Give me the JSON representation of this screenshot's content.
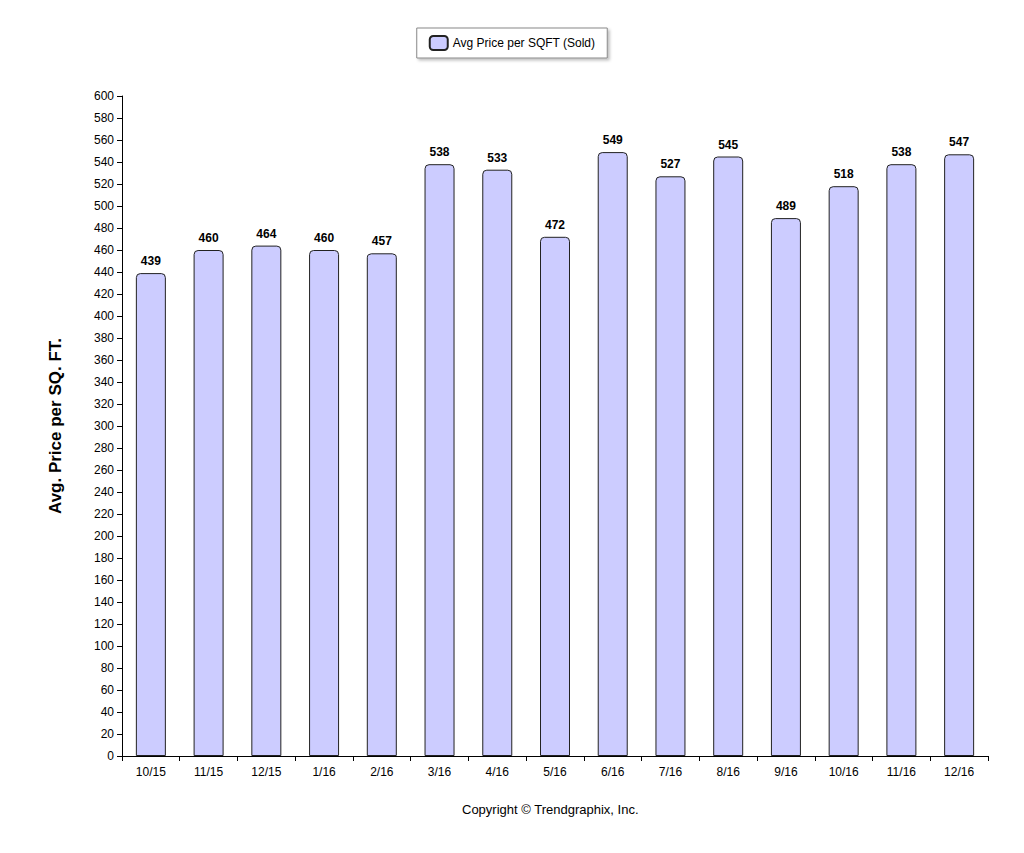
{
  "chart_data": {
    "type": "bar",
    "y_label": "Avg. Price per SQ. FT.",
    "annotations": [
      "Copyright © Trendgraphix, Inc."
    ],
    "categories": [
      "10/15",
      "11/15",
      "12/15",
      "1/16",
      "2/16",
      "3/16",
      "4/16",
      "5/16",
      "6/16",
      "7/16",
      "8/16",
      "9/16",
      "10/16",
      "11/16",
      "12/16"
    ],
    "series": [
      {
        "name": "Avg Price per SQFT (Sold)",
        "color": "#ccccff",
        "values": [
          439,
          460,
          464,
          460,
          457,
          538,
          533,
          472,
          549,
          527,
          545,
          489,
          518,
          538,
          547
        ]
      }
    ],
    "ylim": [
      0,
      600
    ],
    "yticks": [
      0,
      20,
      40,
      60,
      80,
      100,
      120,
      140,
      160,
      180,
      200,
      220,
      240,
      260,
      280,
      300,
      320,
      340,
      360,
      380,
      400,
      420,
      440,
      460,
      480,
      500,
      520,
      540,
      560,
      580,
      600
    ],
    "grid": false,
    "legend": "top",
    "data_labels": true
  }
}
